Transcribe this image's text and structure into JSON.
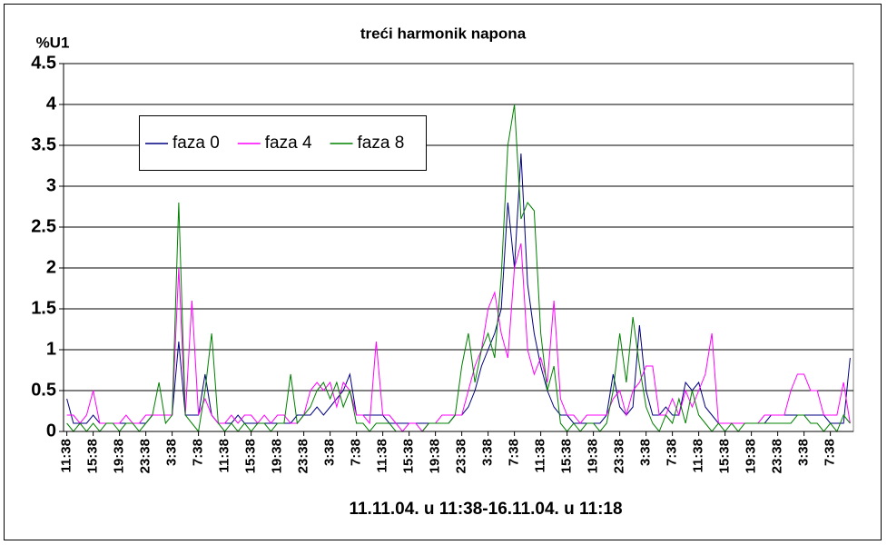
{
  "chart_data": {
    "type": "line",
    "title": "treći harmonik napona",
    "y_label": "%U1",
    "x_label": "11.11.04. u 11:38-16.11.04. u 11:18",
    "categories": [
      "11:38",
      null,
      null,
      null,
      "15:38",
      null,
      null,
      null,
      "19:38",
      null,
      null,
      null,
      "23:38",
      null,
      null,
      null,
      "3:38",
      null,
      null,
      null,
      "7:38",
      null,
      null,
      null,
      "11:38",
      null,
      null,
      null,
      "15:38",
      null,
      null,
      null,
      "19:38",
      null,
      null,
      null,
      "23:38",
      null,
      null,
      null,
      "3:38",
      null,
      null,
      null,
      "7:38",
      null,
      null,
      null,
      "11:38",
      null,
      null,
      null,
      "15:38",
      null,
      null,
      null,
      "19:38",
      null,
      null,
      null,
      "23:38",
      null,
      null,
      null,
      "3:38",
      null,
      null,
      null,
      "7:38",
      null,
      null,
      null,
      "11:38",
      null,
      null,
      null,
      "15:38",
      null,
      null,
      null,
      "19:38",
      null,
      null,
      null,
      "23:38",
      null,
      null,
      null,
      "3:38",
      null,
      null,
      null,
      "7:38",
      null,
      null,
      null,
      "11:38",
      null,
      null,
      null,
      "15:38",
      null,
      null,
      null,
      "19:38",
      null,
      null,
      null,
      "23:38",
      null,
      null,
      null,
      "3:38",
      null,
      null,
      null,
      "7:38",
      null,
      null,
      null
    ],
    "series": [
      {
        "name": "faza 0",
        "color": "#000080",
        "values": [
          0.4,
          0.1,
          0.1,
          0.1,
          0.2,
          0.1,
          0.1,
          0.1,
          0.1,
          0.1,
          0.1,
          0.1,
          0.1,
          0.2,
          0.2,
          0.2,
          0.2,
          1.1,
          0.2,
          0.2,
          0.2,
          0.7,
          0.2,
          0.1,
          0.1,
          0.1,
          0.2,
          0.1,
          0.1,
          0.1,
          0.1,
          0.1,
          0.1,
          0.1,
          0.1,
          0.2,
          0.2,
          0.2,
          0.3,
          0.2,
          0.3,
          0.4,
          0.5,
          0.7,
          0.2,
          0.2,
          0.2,
          0.2,
          0.2,
          0.1,
          0.1,
          0.1,
          0.1,
          0.1,
          0.1,
          0.1,
          0.1,
          0.1,
          0.1,
          0.2,
          0.2,
          0.3,
          0.5,
          0.8,
          1.0,
          1.2,
          1.5,
          2.8,
          2.0,
          3.4,
          1.8,
          1.2,
          0.8,
          0.5,
          0.3,
          0.2,
          0.2,
          0.1,
          0.1,
          0.1,
          0.1,
          0.1,
          0.2,
          0.7,
          0.3,
          0.2,
          0.3,
          1.3,
          0.5,
          0.2,
          0.2,
          0.3,
          0.2,
          0.2,
          0.6,
          0.5,
          0.6,
          0.3,
          0.2,
          0.1,
          0.1,
          0.1,
          0.1,
          0.1,
          0.1,
          0.1,
          0.1,
          0.2,
          0.2,
          0.2,
          0.2,
          0.2,
          0.2,
          0.2,
          0.2,
          0.2,
          0.1,
          0.1,
          0.1,
          0.9
        ]
      },
      {
        "name": "faza 4",
        "color": "#ff00ff",
        "values": [
          0.2,
          0.2,
          0.1,
          0.2,
          0.5,
          0.1,
          0.1,
          0.1,
          0.1,
          0.2,
          0.1,
          0.1,
          0.2,
          0.2,
          0.2,
          0.2,
          0.2,
          2.0,
          0.2,
          1.6,
          0.2,
          0.4,
          0.2,
          0.1,
          0.1,
          0.2,
          0.1,
          0.2,
          0.2,
          0.1,
          0.2,
          0.1,
          0.2,
          0.2,
          0.1,
          0.1,
          0.2,
          0.5,
          0.6,
          0.5,
          0.6,
          0.3,
          0.6,
          0.5,
          0.2,
          0.2,
          0.1,
          1.1,
          0.2,
          0.2,
          0.1,
          0.0,
          0.1,
          0.1,
          0.0,
          0.1,
          0.1,
          0.2,
          0.2,
          0.2,
          0.2,
          0.5,
          0.8,
          1.0,
          1.5,
          1.7,
          1.2,
          0.9,
          2.0,
          2.3,
          1.0,
          0.7,
          0.9,
          0.6,
          1.6,
          0.4,
          0.2,
          0.2,
          0.1,
          0.2,
          0.2,
          0.2,
          0.2,
          0.4,
          0.5,
          0.2,
          0.5,
          0.6,
          0.8,
          0.8,
          0.2,
          0.2,
          0.4,
          0.2,
          0.5,
          0.3,
          0.5,
          0.7,
          1.2,
          0.1,
          0.1,
          0.1,
          0.1,
          0.1,
          0.1,
          0.1,
          0.2,
          0.2,
          0.2,
          0.2,
          0.5,
          0.7,
          0.7,
          0.5,
          0.5,
          0.2,
          0.2,
          0.2,
          0.6,
          0.1
        ]
      },
      {
        "name": "faza 8",
        "color": "#008000",
        "values": [
          0.1,
          0.0,
          0.1,
          0.0,
          0.1,
          0.0,
          0.1,
          0.1,
          0.0,
          0.1,
          0.1,
          0.0,
          0.1,
          0.2,
          0.6,
          0.1,
          0.2,
          2.8,
          0.2,
          0.1,
          0.0,
          0.5,
          1.2,
          0.1,
          0.0,
          0.1,
          0.0,
          0.1,
          0.0,
          0.1,
          0.1,
          0.0,
          0.1,
          0.1,
          0.7,
          0.1,
          0.2,
          0.3,
          0.5,
          0.6,
          0.4,
          0.6,
          0.3,
          0.5,
          0.1,
          0.1,
          0.0,
          0.1,
          0.1,
          0.1,
          0.0,
          0.0,
          0.0,
          0.0,
          0.0,
          0.1,
          0.1,
          0.1,
          0.1,
          0.2,
          0.8,
          1.2,
          0.6,
          1.0,
          1.2,
          0.9,
          1.9,
          3.5,
          4.0,
          2.6,
          2.8,
          2.7,
          1.2,
          0.5,
          0.8,
          0.1,
          0.0,
          0.1,
          0.0,
          0.1,
          0.1,
          0.0,
          0.1,
          0.5,
          1.2,
          0.6,
          1.4,
          0.8,
          0.3,
          0.1,
          0.0,
          0.2,
          0.1,
          0.4,
          0.1,
          0.5,
          0.2,
          0.1,
          0.0,
          0.1,
          0.0,
          0.1,
          0.0,
          0.1,
          0.1,
          0.1,
          0.1,
          0.1,
          0.1,
          0.1,
          0.1,
          0.2,
          0.2,
          0.1,
          0.1,
          0.0,
          0.1,
          0.0,
          0.2,
          0.1
        ]
      }
    ],
    "ylim": [
      0,
      4.5
    ],
    "yticks": [
      0,
      0.5,
      1,
      1.5,
      2,
      2.5,
      3,
      3.5,
      4,
      4.5
    ],
    "grid": true
  }
}
